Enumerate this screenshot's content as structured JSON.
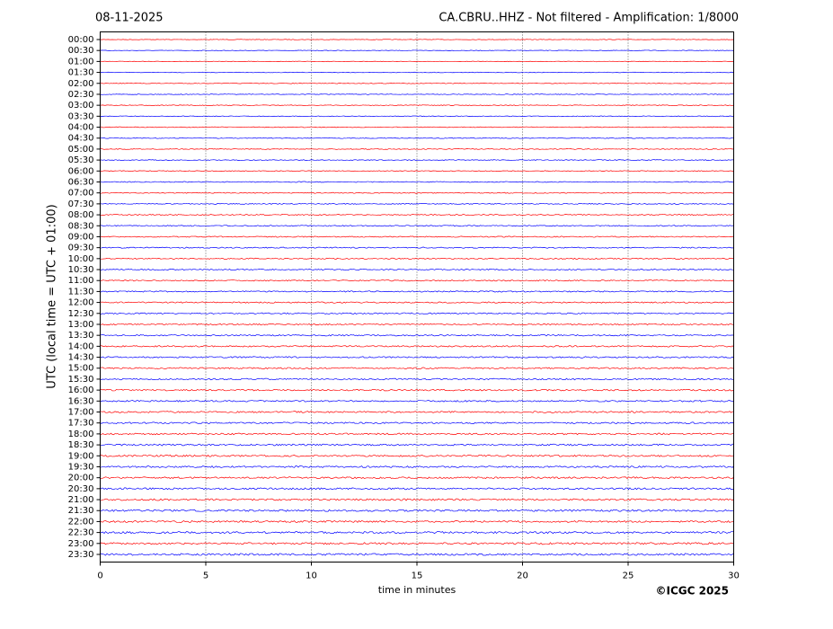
{
  "chart_data": {
    "type": "helicorder",
    "date": "08-11-2025",
    "title": "CA.CBRU..HHZ - Not filtered - Amplification: 1/8000",
    "x_label": "time in minutes",
    "y_label": "UTC (local time = UTC + 01:00)",
    "copyright": "©ICGC 2025",
    "categories": [
      "00:00",
      "00:30",
      "01:00",
      "01:30",
      "02:00",
      "02:30",
      "03:00",
      "03:30",
      "04:00",
      "04:30",
      "05:00",
      "05:30",
      "06:00",
      "06:30",
      "07:00",
      "07:30",
      "08:00",
      "08:30",
      "09:00",
      "09:30",
      "10:00",
      "10:30",
      "11:00",
      "11:30",
      "12:00",
      "12:30",
      "13:00",
      "13:30",
      "14:00",
      "14:30",
      "15:00",
      "15:30",
      "16:00",
      "16:30",
      "17:00",
      "17:30",
      "18:00",
      "18:30",
      "19:00",
      "19:30",
      "20:00",
      "20:30",
      "21:00",
      "21:30",
      "22:00",
      "22:30",
      "23:00",
      "23:30"
    ],
    "colors": [
      "#ff0000",
      "#0000ff"
    ],
    "xlim": [
      0,
      30
    ],
    "xticks": [
      0,
      5,
      10,
      15,
      20,
      25,
      30
    ],
    "grid": true
  }
}
